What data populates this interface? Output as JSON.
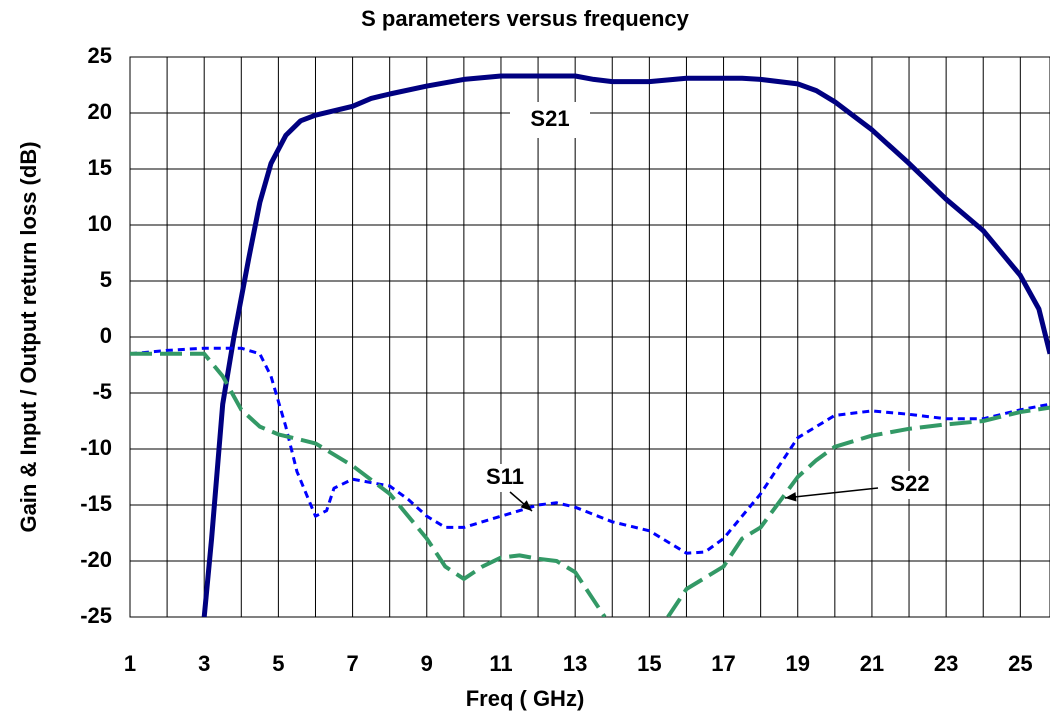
{
  "chart_data": {
    "type": "line",
    "title": "S parameters versus frequency",
    "x_label": "Freq ( GHz)",
    "y_label": "Gain & Input / Output return loss (dB)",
    "xlim": [
      1,
      25.8
    ],
    "ylim": [
      -25,
      25
    ],
    "xticks": [
      1,
      3,
      5,
      7,
      9,
      11,
      13,
      15,
      17,
      19,
      21,
      23,
      25
    ],
    "xminorticks": [
      2,
      4,
      6,
      8,
      10,
      12,
      14,
      16,
      18,
      20,
      22,
      24
    ],
    "yticks": [
      -25,
      -20,
      -15,
      -10,
      -5,
      0,
      5,
      10,
      15,
      20,
      25
    ],
    "grid": true,
    "series": [
      {
        "name": "S21",
        "color": "#000080",
        "dash": "solid",
        "x": [
          3,
          3.2,
          3.5,
          3.8,
          4.2,
          4.5,
          4.8,
          5.2,
          5.6,
          6,
          7,
          7.5,
          8,
          9,
          10,
          11,
          12,
          13,
          13.5,
          14,
          15,
          16,
          17,
          17.5,
          18,
          19,
          19.5,
          20,
          21,
          22,
          23,
          24,
          25,
          25.5,
          25.8
        ],
        "values": [
          -25,
          -18,
          -6,
          0,
          7,
          12,
          15.5,
          18,
          19.3,
          19.8,
          20.6,
          21.3,
          21.7,
          22.4,
          23,
          23.3,
          23.3,
          23.3,
          23,
          22.8,
          22.8,
          23.1,
          23.1,
          23.1,
          23,
          22.6,
          22,
          21,
          18.5,
          15.5,
          12.3,
          9.5,
          5.5,
          2.5,
          -1.5
        ]
      },
      {
        "name": "S11",
        "color": "#0000ff",
        "dash": "short",
        "x": [
          1,
          2,
          3,
          4,
          4.5,
          4.8,
          5.2,
          5.5,
          6,
          6.3,
          6.5,
          7,
          8,
          8.5,
          9,
          9.5,
          10,
          11,
          12,
          12.5,
          13,
          14,
          15,
          15.5,
          16,
          16.5,
          17,
          18,
          19,
          20,
          21,
          22,
          23,
          24,
          25,
          25.8
        ],
        "values": [
          -1.5,
          -1.2,
          -1,
          -1,
          -1.5,
          -3.5,
          -8,
          -12,
          -16,
          -15.5,
          -13.5,
          -12.7,
          -13.3,
          -14.5,
          -16,
          -17,
          -17,
          -16,
          -15,
          -14.8,
          -15.2,
          -16.5,
          -17.3,
          -18.3,
          -19.3,
          -19.2,
          -18,
          -14,
          -9,
          -7,
          -6.6,
          -6.9,
          -7.3,
          -7.3,
          -6.5,
          -6
        ]
      },
      {
        "name": "S22",
        "color": "#339966",
        "dash": "long",
        "x": [
          1,
          2,
          3,
          3.5,
          4,
          4.5,
          5,
          6,
          7,
          8,
          9,
          9.5,
          10,
          10.5,
          11,
          11.5,
          12,
          12.5,
          13,
          13.5,
          13.8,
          14.5,
          15.5,
          16,
          17,
          17.5,
          18,
          19,
          19.5,
          20,
          21,
          22,
          23,
          24,
          25,
          25.8
        ],
        "values": [
          -1.5,
          -1.5,
          -1.5,
          -3.5,
          -6.5,
          -8,
          -8.7,
          -9.5,
          -11.5,
          -14,
          -18,
          -20.5,
          -21.6,
          -20.5,
          -19.7,
          -19.5,
          -19.8,
          -20,
          -21,
          -23.5,
          -25,
          null,
          -25,
          -22.5,
          -20.5,
          -18,
          -17,
          -12.5,
          -11,
          -9.8,
          -8.8,
          -8.2,
          -7.8,
          -7.5,
          -6.7,
          -6.3
        ]
      }
    ]
  }
}
